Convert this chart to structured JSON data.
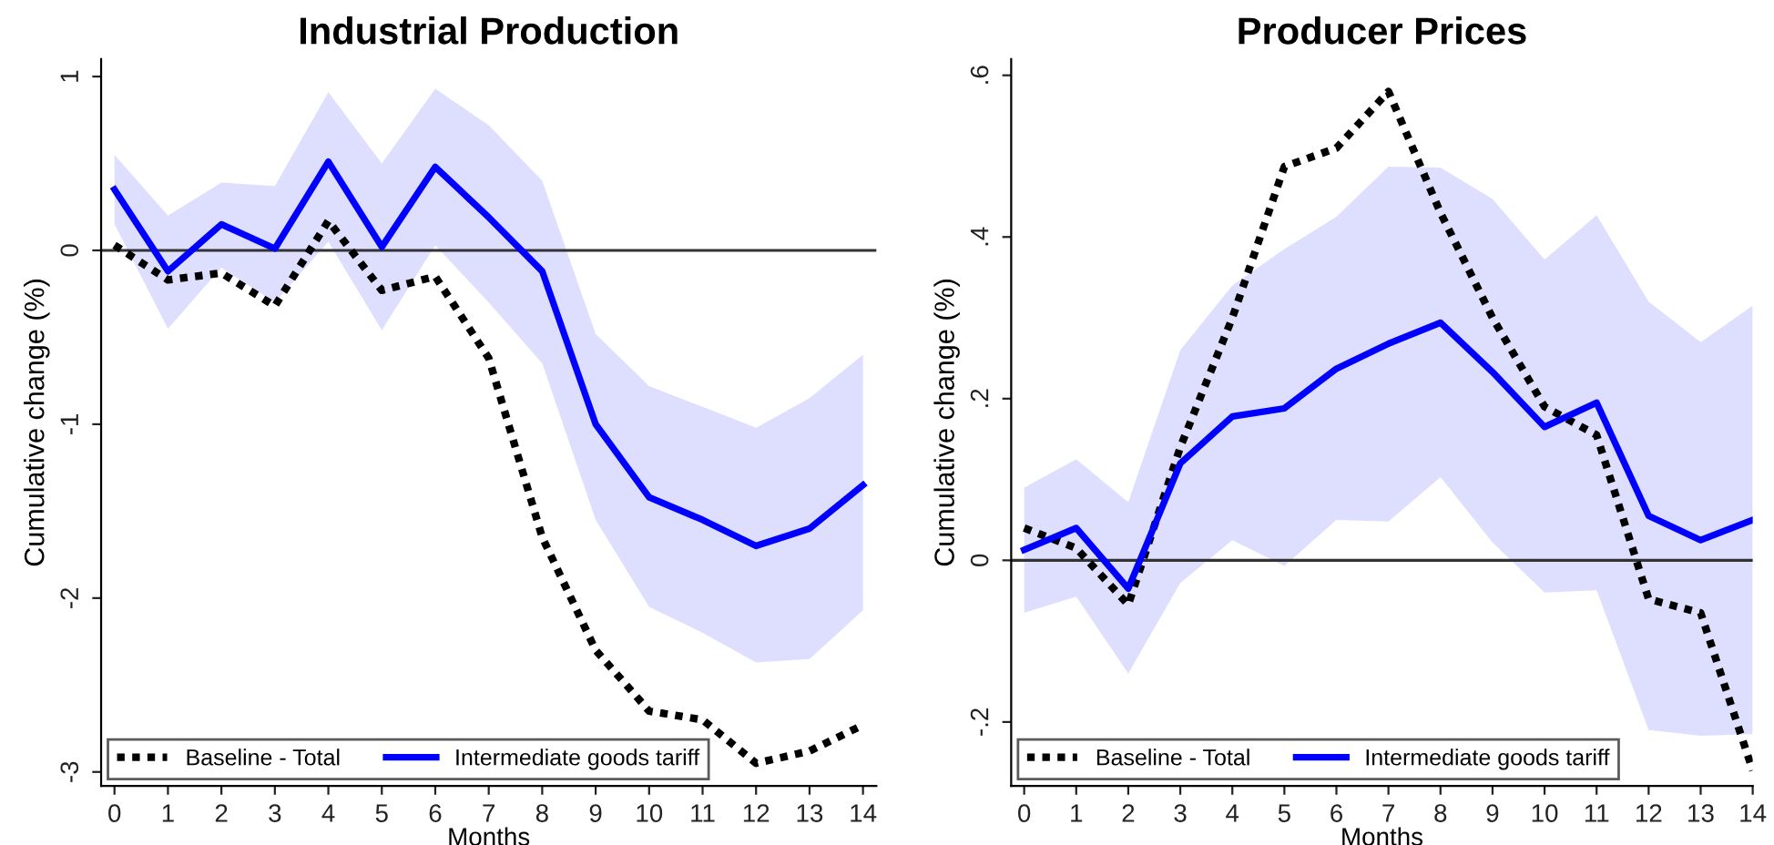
{
  "chart_data": [
    {
      "type": "line",
      "title": "Industrial Production",
      "xlabel": "Months",
      "ylabel": "Cumulative change (%)",
      "x": [
        0,
        1,
        2,
        3,
        4,
        5,
        6,
        7,
        8,
        9,
        10,
        11,
        12,
        13,
        14
      ],
      "xlim": [
        -0.25,
        14.25
      ],
      "xticks": [
        0,
        1,
        2,
        3,
        4,
        5,
        6,
        7,
        8,
        9,
        10,
        11,
        12,
        13,
        14
      ],
      "ylim": [
        -3.08,
        1.1
      ],
      "yticks": [
        1,
        0,
        -1,
        -2,
        -3
      ],
      "ref_lines": [
        {
          "axis": "y",
          "value": 0,
          "color": "#333333"
        }
      ],
      "legend": "bottom left",
      "series": [
        {
          "name": "Baseline - Total",
          "color": "#000000",
          "line_style": "dotted",
          "values": [
            0.03,
            -0.17,
            -0.13,
            -0.32,
            0.17,
            -0.23,
            -0.15,
            -0.62,
            -1.65,
            -2.3,
            -2.65,
            -2.7,
            -2.95,
            -2.88,
            -2.73
          ]
        },
        {
          "name": "Intermediate goods tariff",
          "color": "#0000ff",
          "line_style": "solid",
          "values": [
            0.35,
            -0.12,
            0.15,
            0.01,
            0.51,
            0.02,
            0.48,
            0.19,
            -0.12,
            -1.0,
            -1.42,
            -1.55,
            -1.7,
            -1.6,
            -1.35
          ],
          "lower": [
            0.15,
            -0.45,
            -0.1,
            -0.3,
            0.05,
            -0.46,
            0.03,
            -0.3,
            -0.65,
            -1.55,
            -2.05,
            -2.2,
            -2.37,
            -2.35,
            -2.07
          ],
          "upper": [
            0.55,
            0.2,
            0.39,
            0.37,
            0.91,
            0.5,
            0.93,
            0.72,
            0.4,
            -0.48,
            -0.78,
            -0.9,
            -1.02,
            -0.85,
            -0.6
          ]
        }
      ]
    },
    {
      "type": "line",
      "title": "Producer Prices",
      "xlabel": "Months",
      "ylabel": "Cumulative change (%)",
      "x": [
        0,
        1,
        2,
        3,
        4,
        5,
        6,
        7,
        8,
        9,
        10,
        11,
        12,
        13,
        14
      ],
      "xlim": [
        -0.25,
        14
      ],
      "xticks": [
        0,
        1,
        2,
        3,
        4,
        5,
        6,
        7,
        8,
        9,
        10,
        11,
        12,
        13,
        14
      ],
      "ylim": [
        -0.279,
        0.62
      ],
      "yticks": [
        {
          "value": 0.6,
          "label": ".6"
        },
        {
          "value": 0.4,
          "label": ".4"
        },
        {
          "value": 0.2,
          "label": ".2"
        },
        0,
        {
          "value": -0.2,
          "label": "-.2"
        }
      ],
      "ref_lines": [
        {
          "axis": "y",
          "value": 0,
          "color": "#333333"
        }
      ],
      "legend": "bottom left",
      "series": [
        {
          "name": "Baseline - Total",
          "color": "#000000",
          "line_style": "dotted",
          "values": [
            0.04,
            0.015,
            -0.055,
            0.14,
            0.3,
            0.487,
            0.51,
            0.58,
            0.43,
            0.3,
            0.19,
            0.155,
            -0.048,
            -0.065,
            -0.26
          ]
        },
        {
          "name": "Intermediate goods tariff",
          "color": "#0000ff",
          "line_style": "solid",
          "values": [
            0.013,
            0.04,
            -0.035,
            0.12,
            0.178,
            0.188,
            0.237,
            0.268,
            0.294,
            0.233,
            0.165,
            0.195,
            0.055,
            0.025,
            0.05
          ],
          "lower": [
            -0.065,
            -0.045,
            -0.14,
            -0.028,
            0.025,
            -0.007,
            0.05,
            0.048,
            0.103,
            0.022,
            -0.04,
            -0.037,
            -0.21,
            -0.217,
            -0.215
          ],
          "upper": [
            0.09,
            0.125,
            0.072,
            0.26,
            0.34,
            0.385,
            0.425,
            0.487,
            0.486,
            0.447,
            0.372,
            0.427,
            0.32,
            0.27,
            0.315
          ]
        }
      ]
    }
  ]
}
